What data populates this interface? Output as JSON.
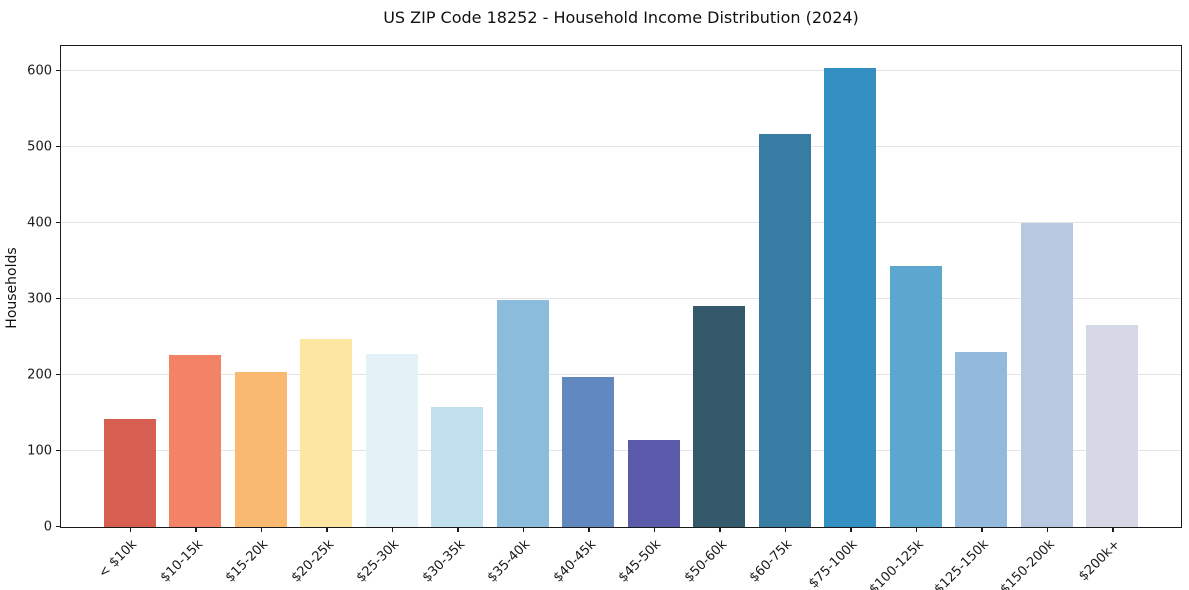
{
  "chart_data": {
    "type": "bar",
    "title": "US ZIP Code 18252 - Household Income Distribution (2024)",
    "xlabel": "",
    "ylabel": "Households",
    "categories": [
      "< $10k",
      "$10-15k",
      "$15-20k",
      "$20-25k",
      "$25-30k",
      "$30-35k",
      "$35-40k",
      "$40-45k",
      "$45-50k",
      "$50-60k",
      "$60-75k",
      "$75-100k",
      "$100-125k",
      "$125-150k",
      "$150-200k",
      "$200k+"
    ],
    "values": [
      142,
      226,
      203,
      246,
      227,
      157,
      297,
      196,
      114,
      290,
      515,
      601,
      342,
      230,
      398,
      265
    ],
    "bar_colors": [
      "#d65f51",
      "#f28367",
      "#f9b970",
      "#fde6a2",
      "#e4f2f7",
      "#bfe0ec",
      "#8cbcdc",
      "#6288c0",
      "#5b59a9",
      "#33596a",
      "#377ca3",
      "#348fc3",
      "#5ba7d0",
      "#93b9dc",
      "#b9c8e1",
      "#d6d8e6"
    ],
    "yticks": [
      0,
      100,
      200,
      300,
      400,
      500,
      600
    ],
    "ylim": [
      0,
      633
    ],
    "grid": "horizontal",
    "grid_color": "#e4e4e4",
    "axis_color": "#1a1a1a",
    "legend": null
  }
}
